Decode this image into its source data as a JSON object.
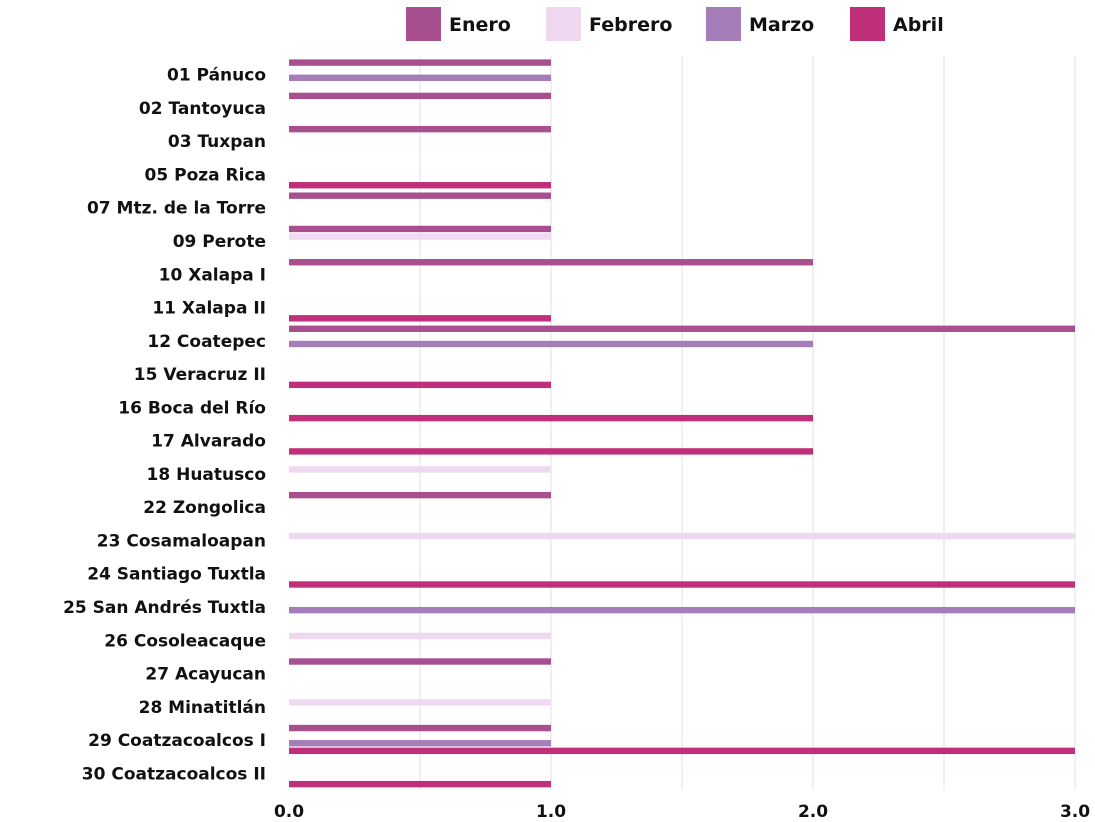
{
  "chart_data": {
    "type": "bar",
    "orientation": "horizontal",
    "categories": [
      "01 Pánuco",
      "02 Tantoyuca",
      "03 Tuxpan",
      "05 Poza Rica",
      "07 Mtz. de la Torre",
      "09 Perote",
      "10 Xalapa I",
      "11 Xalapa II",
      "12 Coatepec",
      "15 Veracruz II",
      "16 Boca del Río",
      "17 Alvarado",
      "18 Huatusco",
      "22 Zongolica",
      "23 Cosamaloapan",
      "24 Santiago Tuxtla",
      "25 San Andrés Tuxtla",
      "26 Cosoleacaque",
      "27 Acayucan",
      "28 Minatitlán",
      "29 Coatzacoalcos I",
      "30 Coatzacoalcos II"
    ],
    "series": [
      {
        "name": "Enero",
        "color": "#a8508f",
        "values": [
          1,
          1,
          1,
          0,
          1,
          1,
          2,
          0,
          3,
          0,
          0,
          0,
          0,
          1,
          0,
          0,
          0,
          0,
          1,
          0,
          1,
          0
        ]
      },
      {
        "name": "Febrero",
        "color": "#efd9f0",
        "values": [
          0,
          0,
          0,
          0,
          0,
          1,
          0,
          0,
          0,
          0,
          0,
          0,
          1,
          0,
          3,
          0,
          0,
          1,
          0,
          1,
          0,
          0
        ]
      },
      {
        "name": "Marzo",
        "color": "#a57db8",
        "values": [
          1,
          0,
          0,
          0,
          0,
          0,
          0,
          0,
          2,
          0,
          0,
          0,
          0,
          0,
          0,
          0,
          3,
          0,
          0,
          0,
          1,
          0
        ]
      },
      {
        "name": "Abril",
        "color": "#c0307a",
        "values": [
          0,
          0,
          0,
          1,
          0,
          0,
          0,
          1,
          0,
          1,
          2,
          2,
          0,
          0,
          0,
          3,
          0,
          0,
          0,
          0,
          3,
          1
        ]
      }
    ],
    "xlim": [
      0,
      3
    ],
    "ticks": [
      {
        "value": 0,
        "label": "0.0"
      },
      {
        "value": 1,
        "label": "1.0"
      },
      {
        "value": 2,
        "label": "2.0"
      },
      {
        "value": 3,
        "label": "3.0"
      }
    ],
    "gridlines": [
      0.5,
      1,
      1.5,
      2,
      2.5,
      3
    ],
    "legend_position": "top"
  }
}
